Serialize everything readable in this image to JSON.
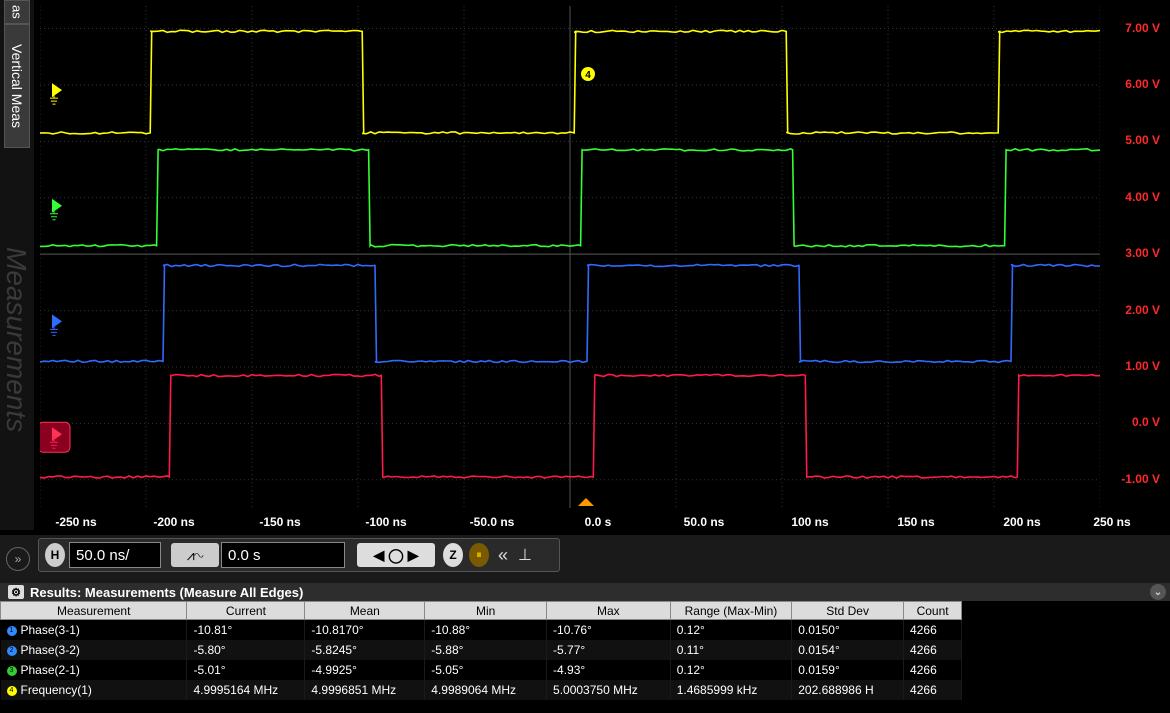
{
  "sidebar": {
    "tab_meas": "as",
    "tab_vertical": "Vertical Meas",
    "tab_measurements": "Measurements"
  },
  "colors": {
    "ch1": "#ffff00",
    "ch2": "#33ff33",
    "ch3": "#2f6bff",
    "ch4": "#ff1a4a",
    "scale": "#ff2a2a"
  },
  "y_scale": [
    "7.00 V",
    "6.00 V",
    "5.00 V",
    "4.00 V",
    "3.00 V",
    "2.00 V",
    "1.00 V",
    "0.0 V",
    "-1.00 V"
  ],
  "x_axis": [
    "-250 ns",
    "-200 ns",
    "-150 ns",
    "-100 ns",
    "-50.0 ns",
    "0.0 s",
    "50.0 ns",
    "100 ns",
    "150 ns",
    "200 ns",
    "250 ns"
  ],
  "trigger_marker": "4",
  "chart_data": {
    "type": "line",
    "x_unit": "ns",
    "xlim": [
      -250,
      250
    ],
    "ylim": [
      -1.5,
      7.4
    ],
    "period_ns": 200,
    "series": [
      {
        "rise_ns": -198,
        "low_v": 5.15,
        "high_v": 6.95
      },
      {
        "rise_ns": -195,
        "low_v": 3.15,
        "high_v": 4.85
      },
      {
        "rise_ns": -192,
        "low_v": 1.1,
        "high_v": 2.8
      },
      {
        "rise_ns": -189,
        "low_v": -0.95,
        "high_v": 0.85
      }
    ]
  },
  "hbar": {
    "h_badge": "H",
    "timebase": "50.0 ns/",
    "position": "0.0 s",
    "z_badge": "Z"
  },
  "results": {
    "title": "Results: Measurements (Measure All Edges)",
    "columns": [
      "Measurement",
      "Current",
      "Mean",
      "Min",
      "Max",
      "Range (Max-Min)",
      "Std Dev",
      "Count"
    ],
    "rows": [
      {
        "badge": "1",
        "color": "#2f8bff",
        "cells": [
          "Phase(3-1)",
          "-10.81°",
          "-10.8170°",
          "-10.88°",
          "-10.76°",
          "0.12°",
          "0.0150°",
          "4266"
        ]
      },
      {
        "badge": "2",
        "color": "#2f8bff",
        "cells": [
          "Phase(3-2)",
          "-5.80°",
          "-5.8245°",
          "-5.88°",
          "-5.77°",
          "0.11°",
          "0.0154°",
          "4266"
        ]
      },
      {
        "badge": "3",
        "color": "#33cc33",
        "cells": [
          "Phase(2-1)",
          "-5.01°",
          "-4.9925°",
          "-5.05°",
          "-4.93°",
          "0.12°",
          "0.0159°",
          "4266"
        ]
      },
      {
        "badge": "4",
        "color": "#ffff00",
        "cells": [
          "Frequency(1)",
          "4.9995164 MHz",
          "4.9996851 MHz",
          "4.9989064 MHz",
          "5.0003750 MHz",
          "1.4685999 kHz",
          "202.688986 H",
          "4266"
        ]
      }
    ]
  }
}
